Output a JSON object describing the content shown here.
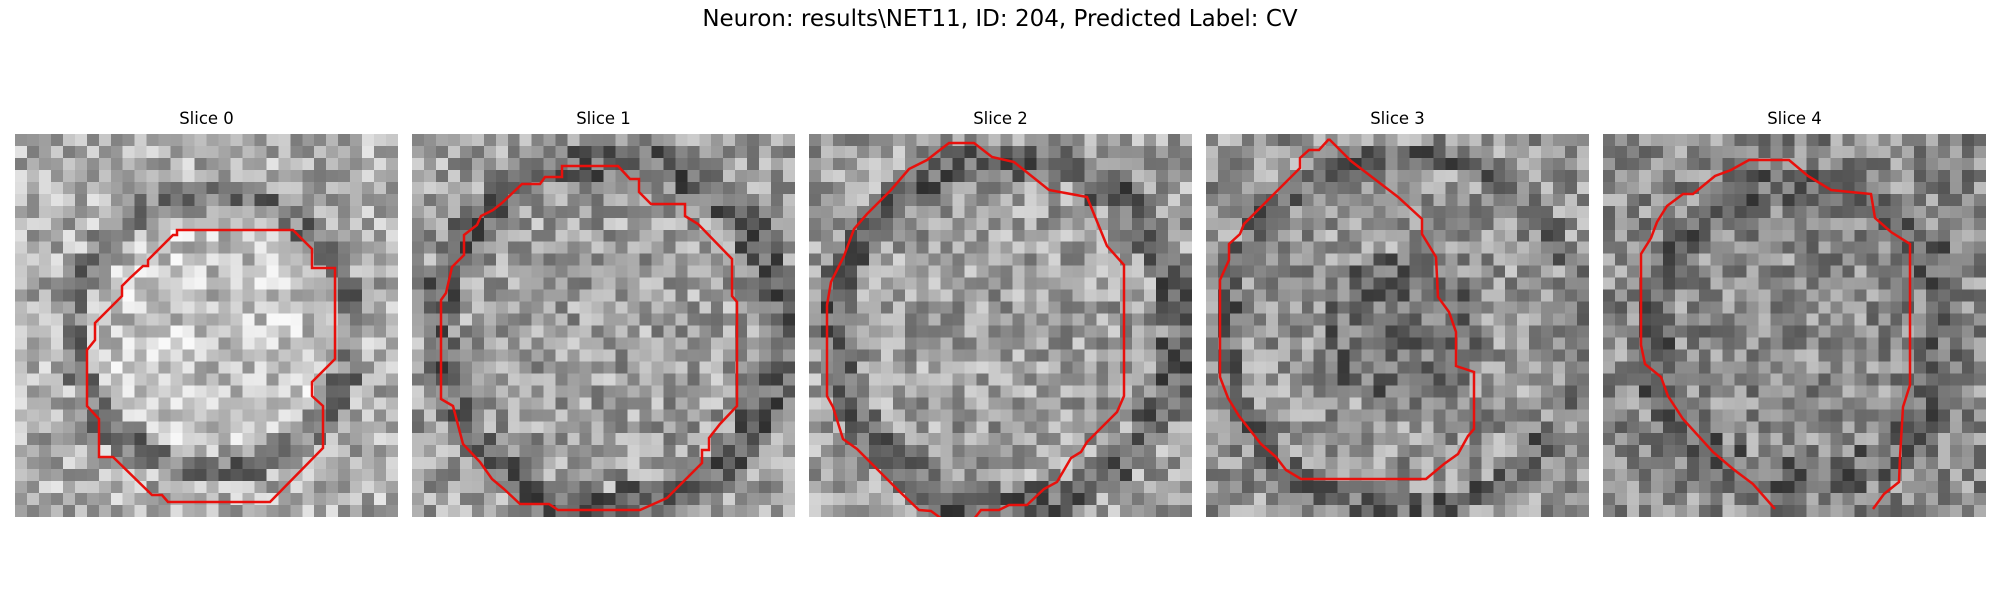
{
  "figure": {
    "title": "Neuron: results\\NET11, ID: 204, Predicted Label: CV"
  },
  "contour_color": "#e8100c",
  "panels": [
    {
      "title": "Slice 0",
      "style": "ring-soft"
    },
    {
      "title": "Slice 1",
      "style": "ring"
    },
    {
      "title": "Slice 2",
      "style": "ring"
    },
    {
      "title": "Slice 3",
      "style": "dark-core"
    },
    {
      "title": "Slice 4",
      "style": "noise"
    }
  ]
}
